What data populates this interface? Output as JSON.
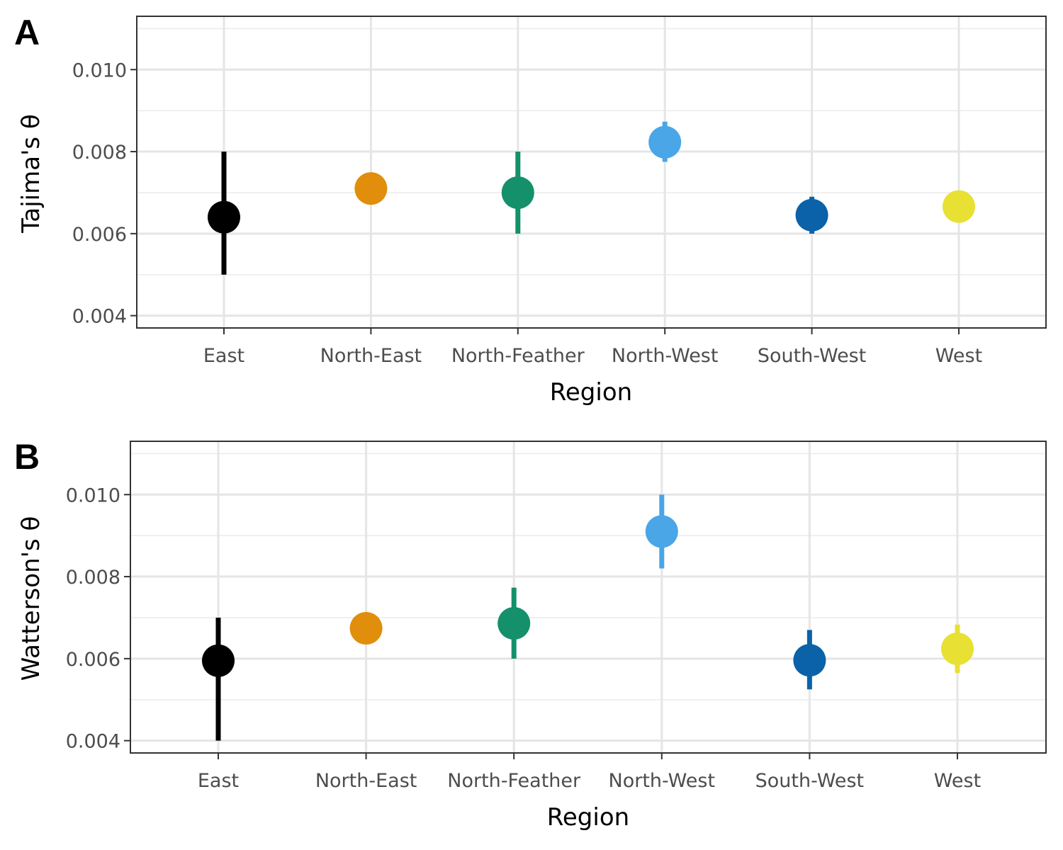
{
  "chart_data": [
    {
      "panel": "A",
      "type": "scatter",
      "xlabel": "Region",
      "ylabel": "Tajima's θ",
      "ylim": [
        0.0037,
        0.0113
      ],
      "yticks": [
        "0.004",
        "0.006",
        "0.008",
        "0.010"
      ],
      "ytick_values": [
        0.004,
        0.006,
        0.008,
        0.01
      ],
      "grid": true,
      "legend": "none",
      "categories": [
        "East",
        "North-East",
        "North-Feather",
        "North-West",
        "South-West",
        "West"
      ],
      "points": [
        {
          "region": "East",
          "y": 0.0064,
          "lower": 0.005,
          "upper": 0.008,
          "color": "#000000"
        },
        {
          "region": "North-East",
          "y": 0.0071,
          "lower": null,
          "upper": null,
          "color": "#E08E0B"
        },
        {
          "region": "North-Feather",
          "y": 0.007,
          "lower": 0.006,
          "upper": 0.008,
          "color": "#14906A"
        },
        {
          "region": "North-West",
          "y": 0.00823,
          "lower": 0.00775,
          "upper": 0.00873,
          "color": "#4AA6E6"
        },
        {
          "region": "South-West",
          "y": 0.00645,
          "lower": 0.006,
          "upper": 0.0069,
          "color": "#0B62A8"
        },
        {
          "region": "West",
          "y": 0.00666,
          "lower": null,
          "upper": null,
          "color": "#E8E033"
        }
      ]
    },
    {
      "panel": "B",
      "type": "scatter",
      "xlabel": "Region",
      "ylabel": "Watterson's θ",
      "ylim": [
        0.0037,
        0.0113
      ],
      "yticks": [
        "0.004",
        "0.006",
        "0.008",
        "0.010"
      ],
      "ytick_values": [
        0.004,
        0.006,
        0.008,
        0.01
      ],
      "grid": true,
      "legend": "none",
      "categories": [
        "East",
        "North-East",
        "North-Feather",
        "North-West",
        "South-West",
        "West"
      ],
      "points": [
        {
          "region": "East",
          "y": 0.00595,
          "lower": 0.004,
          "upper": 0.007,
          "color": "#000000"
        },
        {
          "region": "North-East",
          "y": 0.00674,
          "lower": null,
          "upper": null,
          "color": "#E08E0B"
        },
        {
          "region": "North-Feather",
          "y": 0.00686,
          "lower": 0.006,
          "upper": 0.00773,
          "color": "#14906A"
        },
        {
          "region": "North-West",
          "y": 0.0091,
          "lower": 0.0082,
          "upper": 0.01,
          "color": "#4AA6E6"
        },
        {
          "region": "South-West",
          "y": 0.00596,
          "lower": 0.00525,
          "upper": 0.0067,
          "color": "#0B62A8"
        },
        {
          "region": "West",
          "y": 0.00624,
          "lower": 0.00565,
          "upper": 0.00683,
          "color": "#E8E033"
        }
      ]
    }
  ]
}
